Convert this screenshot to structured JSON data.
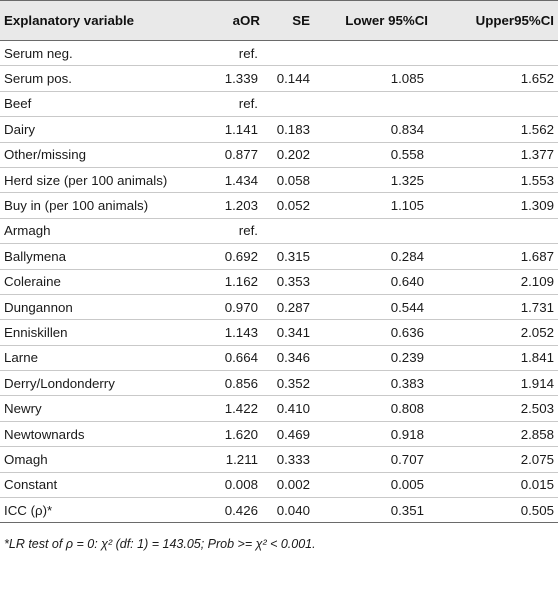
{
  "table": {
    "headers": [
      "Explanatory variable",
      "aOR",
      "SE",
      "Lower 95%CI",
      "Upper95%CI"
    ],
    "rows": [
      [
        "Serum neg.",
        "ref.",
        "",
        "",
        ""
      ],
      [
        "Serum pos.",
        "1.339",
        "0.144",
        "1.085",
        "1.652"
      ],
      [
        "Beef",
        "ref.",
        "",
        "",
        ""
      ],
      [
        "Dairy",
        "1.141",
        "0.183",
        "0.834",
        "1.562"
      ],
      [
        "Other/missing",
        "0.877",
        "0.202",
        "0.558",
        "1.377"
      ],
      [
        "Herd size (per 100 animals)",
        "1.434",
        "0.058",
        "1.325",
        "1.553"
      ],
      [
        "Buy in (per 100 animals)",
        "1.203",
        "0.052",
        "1.105",
        "1.309"
      ],
      [
        "Armagh",
        "ref.",
        "",
        "",
        ""
      ],
      [
        "Ballymena",
        "0.692",
        "0.315",
        "0.284",
        "1.687"
      ],
      [
        "Coleraine",
        "1.162",
        "0.353",
        "0.640",
        "2.109"
      ],
      [
        "Dungannon",
        "0.970",
        "0.287",
        "0.544",
        "1.731"
      ],
      [
        "Enniskillen",
        "1.143",
        "0.341",
        "0.636",
        "2.052"
      ],
      [
        "Larne",
        "0.664",
        "0.346",
        "0.239",
        "1.841"
      ],
      [
        "Derry/Londonderry",
        "0.856",
        "0.352",
        "0.383",
        "1.914"
      ],
      [
        "Newry",
        "1.422",
        "0.410",
        "0.808",
        "2.503"
      ],
      [
        "Newtownards",
        "1.620",
        "0.469",
        "0.918",
        "2.858"
      ],
      [
        "Omagh",
        "1.211",
        "0.333",
        "0.707",
        "2.075"
      ],
      [
        "Constant",
        "0.008",
        "0.002",
        "0.005",
        "0.015"
      ],
      [
        "ICC (ρ)*",
        "0.426",
        "0.040",
        "0.351",
        "0.505"
      ]
    ]
  },
  "footnote": "*LR test of ρ = 0: χ² (df: 1) = 143.05; Prob >= χ² < 0.001."
}
